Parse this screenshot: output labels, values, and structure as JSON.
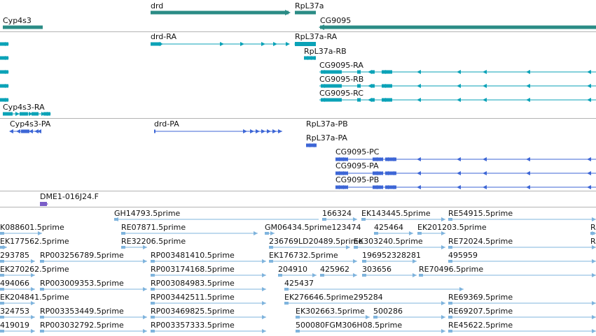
{
  "colors": {
    "gene": "#2b8c86",
    "transcript": "#0aa2b7",
    "protein": "#3d66d6",
    "clone": "#7b5ec8",
    "est": "#7fb4dd",
    "separator": "#b3b3b3"
  },
  "tracks": {
    "genes": {
      "labels": [
        {
          "id": "cyp4s3",
          "text": "Cyp4s3"
        },
        {
          "id": "drd",
          "text": "drd"
        },
        {
          "id": "rpl37a",
          "text": "RpL37a"
        },
        {
          "id": "cg9095",
          "text": "CG9095"
        }
      ]
    },
    "transcripts": {
      "labels": [
        {
          "id": "drd-ra",
          "text": "drd-RA"
        },
        {
          "id": "rpl37a-ra",
          "text": "RpL37a-RA"
        },
        {
          "id": "rpl37a-rb",
          "text": "RpL37a-RB"
        },
        {
          "id": "cg9095-ra",
          "text": "CG9095-RA"
        },
        {
          "id": "cg9095-rb",
          "text": "CG9095-RB"
        },
        {
          "id": "cg9095-rc",
          "text": "CG9095-RC"
        },
        {
          "id": "cyp4s3-ra",
          "text": "Cyp4s3-RA"
        }
      ]
    },
    "proteins": {
      "labels": [
        {
          "id": "cyp4s3-pa",
          "text": "Cyp4s3-PA"
        },
        {
          "id": "drd-pa",
          "text": "drd-PA"
        },
        {
          "id": "rpl37a-pb",
          "text": "RpL37a-PB"
        },
        {
          "id": "rpl37a-pa",
          "text": "RpL37a-PA"
        },
        {
          "id": "cg9095-pc",
          "text": "CG9095-PC"
        },
        {
          "id": "cg9095-pa",
          "text": "CG9095-PA"
        },
        {
          "id": "cg9095-pb",
          "text": "CG9095-PB"
        }
      ]
    },
    "clones": {
      "labels": [
        {
          "id": "dme1",
          "text": "DME1-016J24.F"
        }
      ]
    },
    "ests": {
      "labels": [
        "GH14793.5prime",
        "166324",
        "EK143445.5prime",
        "RE54915.5prime",
        "K088601.5prime",
        "RE07871.5prime",
        "GM06434.5prime123474",
        "425464",
        "EK201203.5prime",
        "R",
        "EK177562.5prime",
        "RE32206.5prime",
        "236769LD20489.5prime",
        "EK303240.5prime",
        "RE72024.5prime",
        "R",
        "293785",
        "RP003256789.5prime",
        "RP003481410.5prime",
        "EK176732.5prime",
        "196952328281",
        "495959",
        "EK270262.5prime",
        "RP003174168.5prime",
        "204910",
        "425962",
        "303656",
        "RE70496.5prime",
        "494066",
        "RP003009353.5prime",
        "RP003084983.5prime",
        "425437",
        "EK204841.5prime",
        "RP003442511.5prime",
        "EK276646.5prime295284",
        "RE69369.5prime",
        "324753",
        "RP003353449.5prime",
        "RP003469825.5prime",
        "EK302663.5prime",
        "500286",
        "RE69207.5prime",
        "419019",
        "RP003032792.5prime",
        "RP003357333.5prime",
        "500080FGM306H08.5prime",
        "RE45622.5prime"
      ]
    }
  }
}
